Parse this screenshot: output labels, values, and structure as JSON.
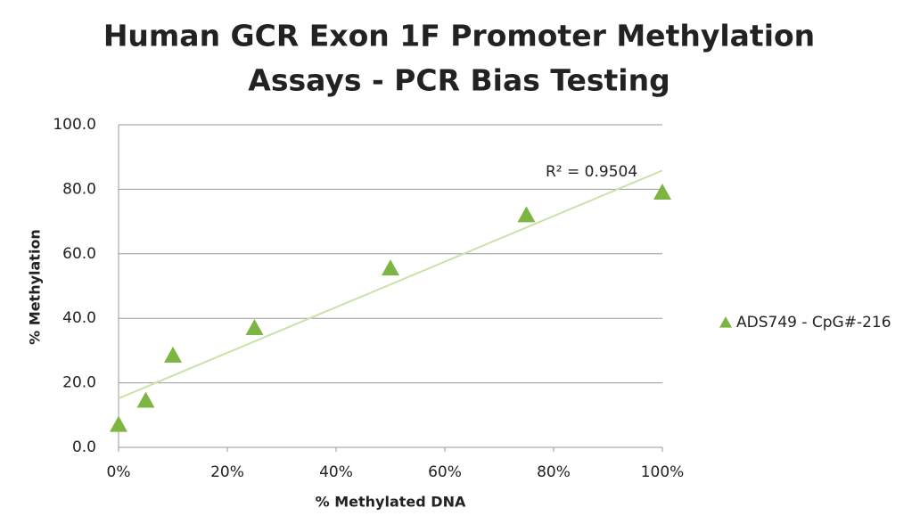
{
  "chart_data": {
    "type": "scatter",
    "title": [
      "Human GCR Exon 1F Promoter Methylation",
      "Assays - PCR Bias Testing"
    ],
    "x_label": "% Methylated DNA",
    "y_label": "% Methylation",
    "x": [
      0,
      5,
      10,
      25,
      50,
      75,
      100
    ],
    "series": [
      {
        "name": "ADS749 - CpG#-216",
        "color": "#7db543",
        "values": [
          7,
          14.5,
          28.5,
          37,
          55.5,
          72,
          79
        ]
      }
    ],
    "xlim": [
      0,
      100
    ],
    "xticks": [
      {
        "value": 0,
        "label": "0%"
      },
      {
        "value": 20,
        "label": "20%"
      },
      {
        "value": 40,
        "label": "40%"
      },
      {
        "value": 60,
        "label": "60%"
      },
      {
        "value": 80,
        "label": "80%"
      },
      {
        "value": 100,
        "label": "100%"
      }
    ],
    "ylim": [
      0,
      100
    ],
    "yticks": [
      {
        "value": 0,
        "label": "0.0"
      },
      {
        "value": 20,
        "label": "20.0"
      },
      {
        "value": 40,
        "label": "40.0"
      },
      {
        "value": 60,
        "label": "60.0"
      },
      {
        "value": 80,
        "label": "80.0"
      },
      {
        "value": 100,
        "label": "100.0"
      }
    ],
    "grid": true,
    "legend": "right",
    "trendline": {
      "r_squared": 0.9504,
      "label": "R² = 0.9504",
      "color": "#c9e2aa"
    }
  }
}
